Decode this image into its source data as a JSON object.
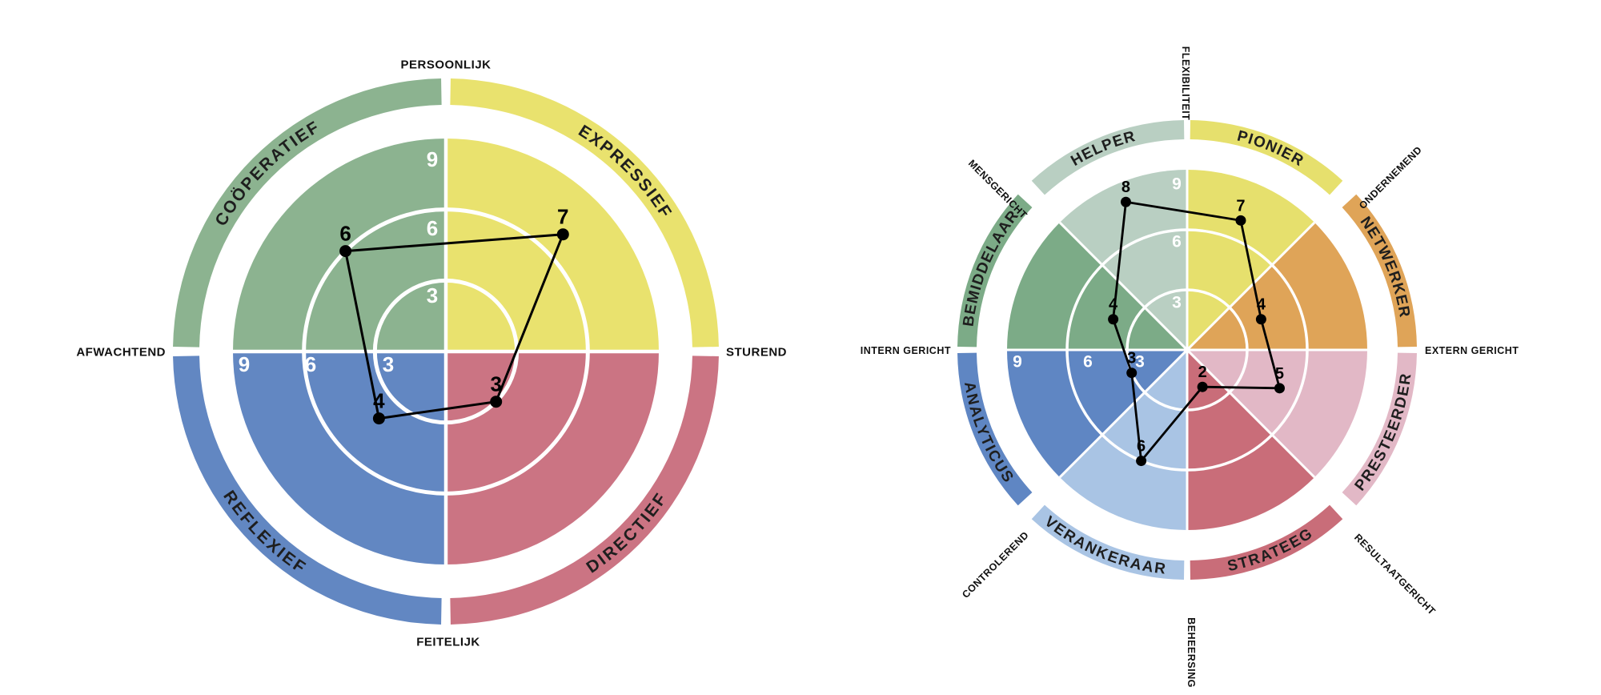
{
  "page": {
    "background": "#ffffff",
    "text_color": "#111111"
  },
  "chart_data": [
    {
      "type": "polar-wheel",
      "name": "communication-style-wheel",
      "rings": [
        "3",
        "6",
        "9"
      ],
      "max": 9,
      "first_sector_start_bearing": 270,
      "sectors": [
        {
          "label": "COÖPERATIEF",
          "value": 6,
          "color": "#8cb390"
        },
        {
          "label": "EXPRESSIEF",
          "value": 7,
          "color": "#e9e26e"
        },
        {
          "label": "DIRECTIEF",
          "value": 3,
          "color": "#cb7483"
        },
        {
          "label": "REFLEXIEF",
          "value": 4,
          "color": "#6287c2"
        }
      ],
      "axis_labels": [
        {
          "text": "PERSOONLIJK",
          "position": "N"
        },
        {
          "text": "STUREND",
          "position": "E"
        },
        {
          "text": "FEITELIJK",
          "position": "S"
        },
        {
          "text": "AFWACHTEND",
          "position": "W"
        }
      ],
      "ring_number_color": "#ffffff",
      "polygon_color": "#000000"
    },
    {
      "type": "polar-wheel",
      "name": "team-role-wheel",
      "rings": [
        "3",
        "6",
        "9"
      ],
      "max": 9,
      "first_sector_start_bearing": 0,
      "sectors": [
        {
          "label": "PIONIER",
          "value": 7,
          "color": "#e6e06d"
        },
        {
          "label": "NETWERKER",
          "value": 4,
          "color": "#dfa458"
        },
        {
          "label": "PRESTEERDER",
          "value": 5,
          "color": "#e2b8c6"
        },
        {
          "label": "STRATEEG",
          "value": 2,
          "color": "#c96d79"
        },
        {
          "label": "VERANKERAAR",
          "value": 6,
          "color": "#a9c4e4"
        },
        {
          "label": "ANALYTICUS",
          "value": 3,
          "color": "#5f86c3"
        },
        {
          "label": "BEMIDDELAAR",
          "value": 4,
          "color": "#7cab87"
        },
        {
          "label": "HELPER",
          "value": 8,
          "color": "#b9cfc2"
        }
      ],
      "axis_labels": [
        {
          "text": "FLEXIBILITEIT",
          "position": "N"
        },
        {
          "text": "ONDERNEMEND",
          "position": "NE"
        },
        {
          "text": "EXTERN GERICHT",
          "position": "E"
        },
        {
          "text": "RESULTAATGERICHT",
          "position": "SE"
        },
        {
          "text": "BEHEERSING",
          "position": "S"
        },
        {
          "text": "CONTROLEREND",
          "position": "SW"
        },
        {
          "text": "INTERN GERICHT",
          "position": "W"
        },
        {
          "text": "MENSGERICHT",
          "position": "NW"
        }
      ],
      "ring_number_color": "#ffffff",
      "polygon_color": "#000000"
    }
  ]
}
